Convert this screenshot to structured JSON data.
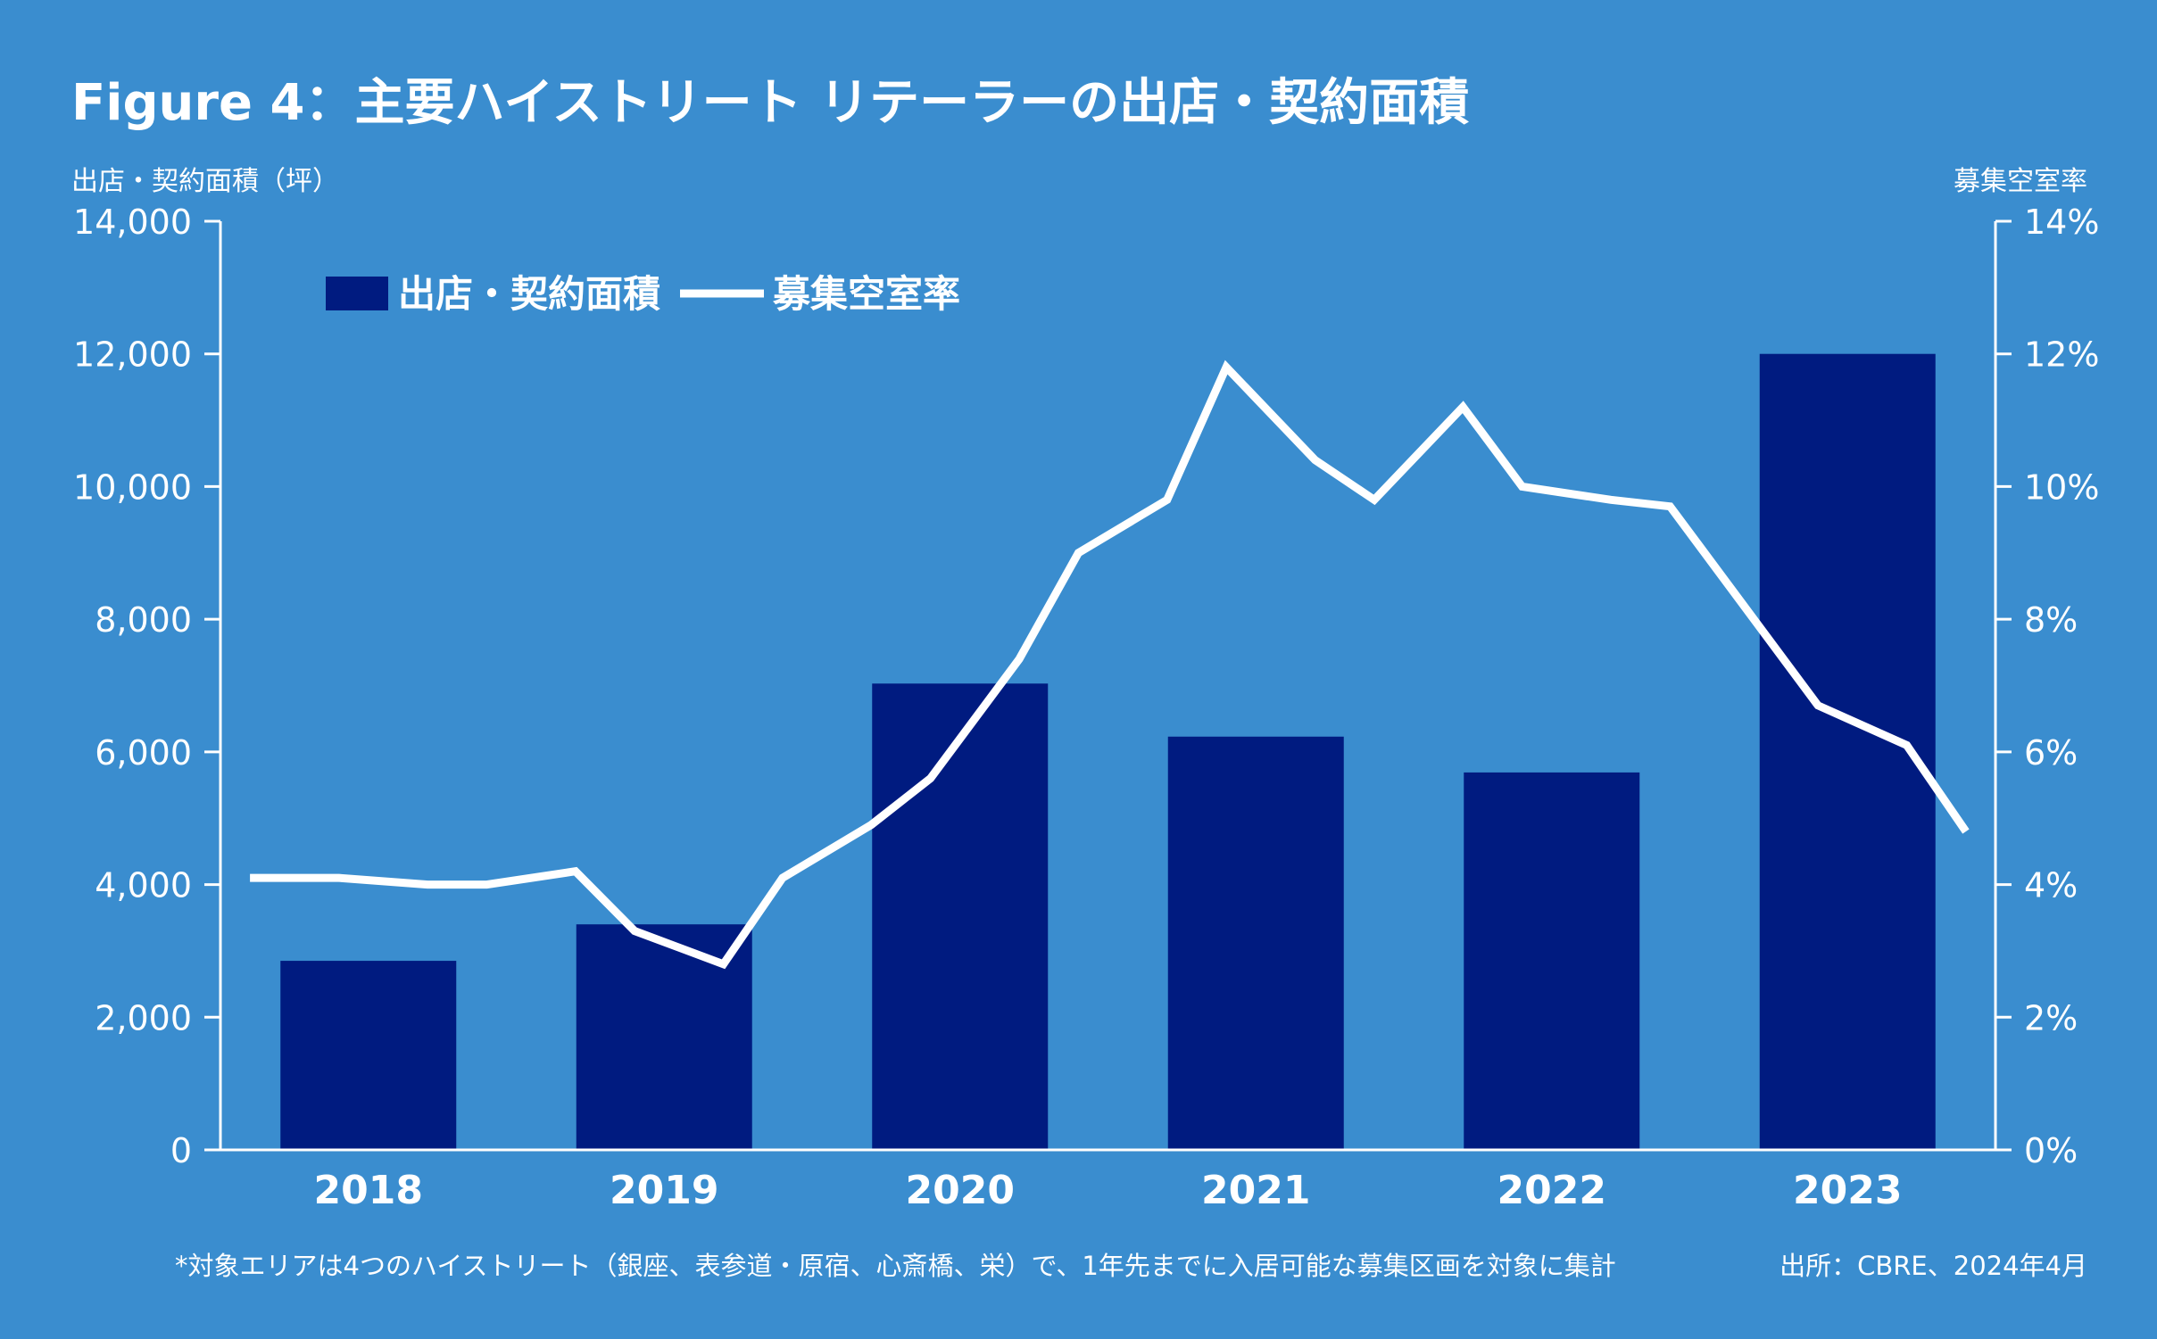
{
  "header": {
    "title": "Figure 4：主要ハイストリート リテーラーの出店・契約面積"
  },
  "chart_data": {
    "type": "bar",
    "categories": [
      "2018",
      "2019",
      "2020",
      "2021",
      "2022",
      "2023"
    ],
    "series": [
      {
        "name": "出店・契約面積",
        "type": "bar",
        "axis": "left",
        "color": "#001B80",
        "values": [
          2850,
          3400,
          7030,
          6230,
          5690,
          12000
        ]
      },
      {
        "name": "募集空室率",
        "type": "line",
        "axis": "right",
        "color": "#FFFFFF",
        "x": [
          2017.6,
          2017.9,
          2018.2,
          2018.4,
          2018.7,
          2018.9,
          2019.2,
          2019.4,
          2019.7,
          2019.9,
          2020.2,
          2020.4,
          2020.7,
          2020.9,
          2021.2,
          2021.4,
          2021.7,
          2021.9,
          2022.2,
          2022.4,
          2022.7,
          2022.9,
          2023.2,
          2023.4
        ],
        "values": [
          4.1,
          4.1,
          4.0,
          4.0,
          4.2,
          3.3,
          2.8,
          4.1,
          4.9,
          5.6,
          7.4,
          9.0,
          9.8,
          11.8,
          10.4,
          9.8,
          11.2,
          10.0,
          9.8,
          9.7,
          7.9,
          6.7,
          6.1,
          4.8
        ]
      }
    ],
    "y_left": {
      "label": "出店・契約面積（坪）",
      "ylim": [
        0,
        14000
      ],
      "ticks": [
        "0",
        "2,000",
        "4,000",
        "6,000",
        "8,000",
        "10,000",
        "12,000",
        "14,000"
      ]
    },
    "y_right": {
      "label": "募集空室率",
      "ylim": [
        0,
        14
      ],
      "ticks": [
        "0%",
        "2%",
        "4%",
        "6%",
        "8%",
        "10%",
        "12%",
        "14%"
      ]
    },
    "grid": false,
    "legend": "top-left"
  },
  "footnote": "*対象エリアは4つのハイストリート（銀座、表参道・原宿、心斎橋、栄）で、1年先までに入居可能な募集区画を対象に集計",
  "source": "出所：CBRE、2024年4月"
}
